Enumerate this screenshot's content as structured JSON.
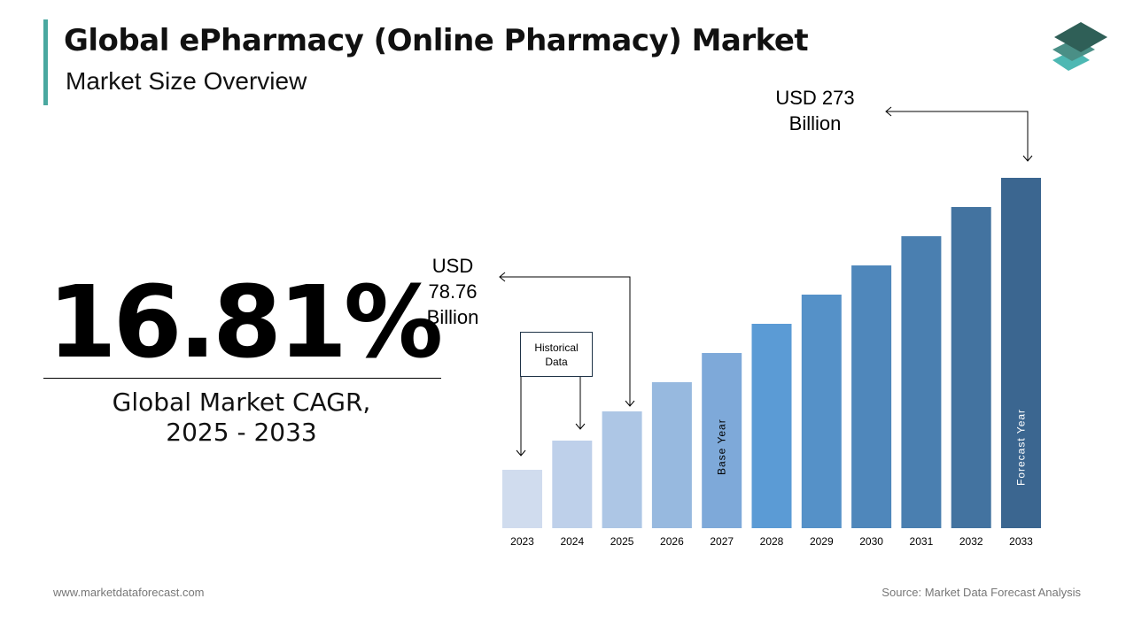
{
  "header": {
    "title": "Global ePharmacy (Online Pharmacy) Market",
    "subtitle": "Market Size Overview"
  },
  "kpi": {
    "value": "16.81%",
    "label_line1": "Global Market CAGR,",
    "label_line2": "2025 - 2033"
  },
  "annotations": {
    "end": [
      "USD 273",
      "Billion"
    ],
    "start": [
      "USD",
      "78.76",
      "Billion"
    ],
    "historical": [
      "Historical",
      "Data"
    ]
  },
  "footer": {
    "website": "www.marketdataforecast.com",
    "source": "Source: Market Data Forecast Analysis"
  },
  "logo": {
    "colors": [
      "#2f5f57",
      "#4a8f86",
      "#4db8b3"
    ]
  },
  "chart_data": {
    "type": "bar",
    "categories": [
      "2023",
      "2024",
      "2025",
      "2026",
      "2027",
      "2028",
      "2029",
      "2030",
      "2031",
      "2032",
      "2033"
    ],
    "values": [
      null,
      null,
      78.76,
      null,
      null,
      null,
      null,
      null,
      null,
      null,
      273
    ],
    "unit": "USD Billion",
    "bar_labels": {
      "2027": "Base Year",
      "2033": "Forecast Year"
    },
    "colors": [
      "#d0dcee",
      "#bed0ea",
      "#adc6e5",
      "#97b9df",
      "#7ea9d9",
      "#5b9bd5",
      "#5591c8",
      "#4f87bb",
      "#4a7fb0",
      "#4373a0",
      "#3b6690"
    ],
    "grid": false,
    "legend": "none"
  }
}
